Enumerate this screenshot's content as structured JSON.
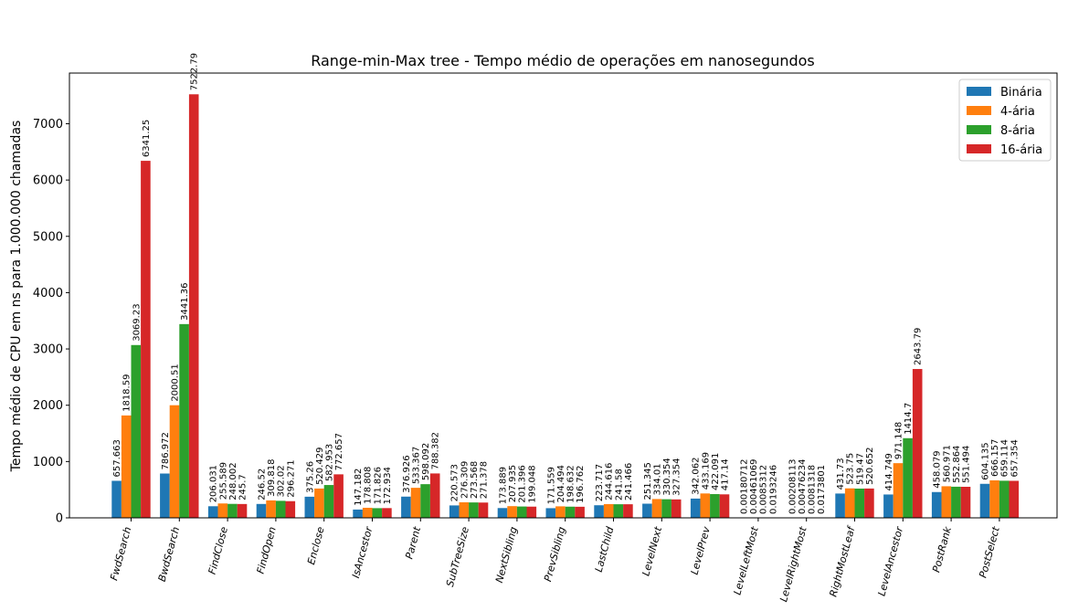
{
  "chart_data": {
    "type": "bar",
    "title": "Range-min-Max tree - Tempo médio de operações em nanosegundos",
    "xlabel": "",
    "ylabel": "Tempo médio de CPU em ns para 1.000.000 chamadas",
    "ylim": [
      0,
      7900
    ],
    "yticks": [
      0,
      1000,
      2000,
      3000,
      4000,
      5000,
      6000,
      7000
    ],
    "grid": false,
    "legend_position": "top-right",
    "categories": [
      "FwdSearch",
      "BwdSearch",
      "FindClose",
      "FindOpen",
      "Enclose",
      "IsAncestor",
      "Parent",
      "SubTreeSize",
      "NextSibling",
      "PrevSibling",
      "LastChild",
      "LevelNext",
      "LevelPrev",
      "LevelLeftMost",
      "LevelRightMost",
      "RightMostLeaf",
      "LevelAncestor",
      "PostRank",
      "PostSelect"
    ],
    "series": [
      {
        "name": "Binária",
        "color": "#1f77b4",
        "values": [
          657.663,
          786.972,
          206.031,
          246.52,
          375.26,
          147.182,
          376.926,
          220.573,
          173.889,
          171.559,
          223.717,
          251.345,
          342.062,
          0.00180712,
          0.00208113,
          431.73,
          414.749,
          458.079,
          604.135
        ],
        "labels": [
          "657.663",
          "786.972",
          "206.031",
          "246.52",
          "375.26",
          "147.182",
          "376.926",
          "220.573",
          "173.889",
          "171.559",
          "223.717",
          "251.345",
          "342.062",
          "0.00180712",
          "0.00208113",
          "431.73",
          "414.749",
          "458.079",
          "604.135"
        ]
      },
      {
        "name": "4-ária",
        "color": "#ff7f0e",
        "values": [
          1818.59,
          2000.51,
          255.589,
          309.818,
          520.429,
          178.808,
          533.367,
          276.309,
          207.935,
          204.494,
          244.616,
          334.01,
          433.169,
          0.00461069,
          0.00476234,
          523.75,
          971.148,
          560.971,
          666.157
        ],
        "labels": [
          "1818.59",
          "2000.51",
          "255.589",
          "309.818",
          "520.429",
          "178.808",
          "533.367",
          "276.309",
          "207.935",
          "204.494",
          "244.616",
          "334.01",
          "433.169",
          "0.00461069",
          "0.00476234",
          "523.75",
          "971.148",
          "560.971",
          "666.157"
        ]
      },
      {
        "name": "8-ária",
        "color": "#2ca02c",
        "values": [
          3069.23,
          3441.36,
          248.002,
          302.02,
          582.953,
          171.826,
          598.092,
          273.568,
          201.396,
          198.632,
          241.58,
          330.354,
          422.091,
          0.0085312,
          0.0081318,
          519.47,
          1414.7,
          552.864,
          659.114
        ],
        "labels": [
          "3069.23",
          "3441.36",
          "248.002",
          "302.02",
          "582.953",
          "171.826",
          "598.092",
          "273.568",
          "201.396",
          "198.632",
          "241.58",
          "330.354",
          "422.091",
          "0.0085312",
          "0.0081318",
          "519.47",
          "1414.7",
          "552.864",
          "659.114"
        ]
      },
      {
        "name": "16-ária",
        "color": "#d62728",
        "values": [
          6341.25,
          7522.79,
          245.7,
          296.271,
          772.657,
          172.934,
          788.382,
          271.378,
          199.048,
          196.762,
          241.466,
          327.354,
          417.14,
          0.0193246,
          0.0173801,
          520.652,
          2643.79,
          551.494,
          657.354
        ],
        "labels": [
          "6341.25",
          "7522.79",
          "245.7",
          "296.271",
          "772.657",
          "172.934",
          "788.382",
          "271.378",
          "199.048",
          "196.762",
          "241.466",
          "327.354",
          "417.14",
          "0.0193246",
          "0.0173801",
          "520.652",
          "2643.79",
          "551.494",
          "657.354"
        ]
      }
    ]
  }
}
